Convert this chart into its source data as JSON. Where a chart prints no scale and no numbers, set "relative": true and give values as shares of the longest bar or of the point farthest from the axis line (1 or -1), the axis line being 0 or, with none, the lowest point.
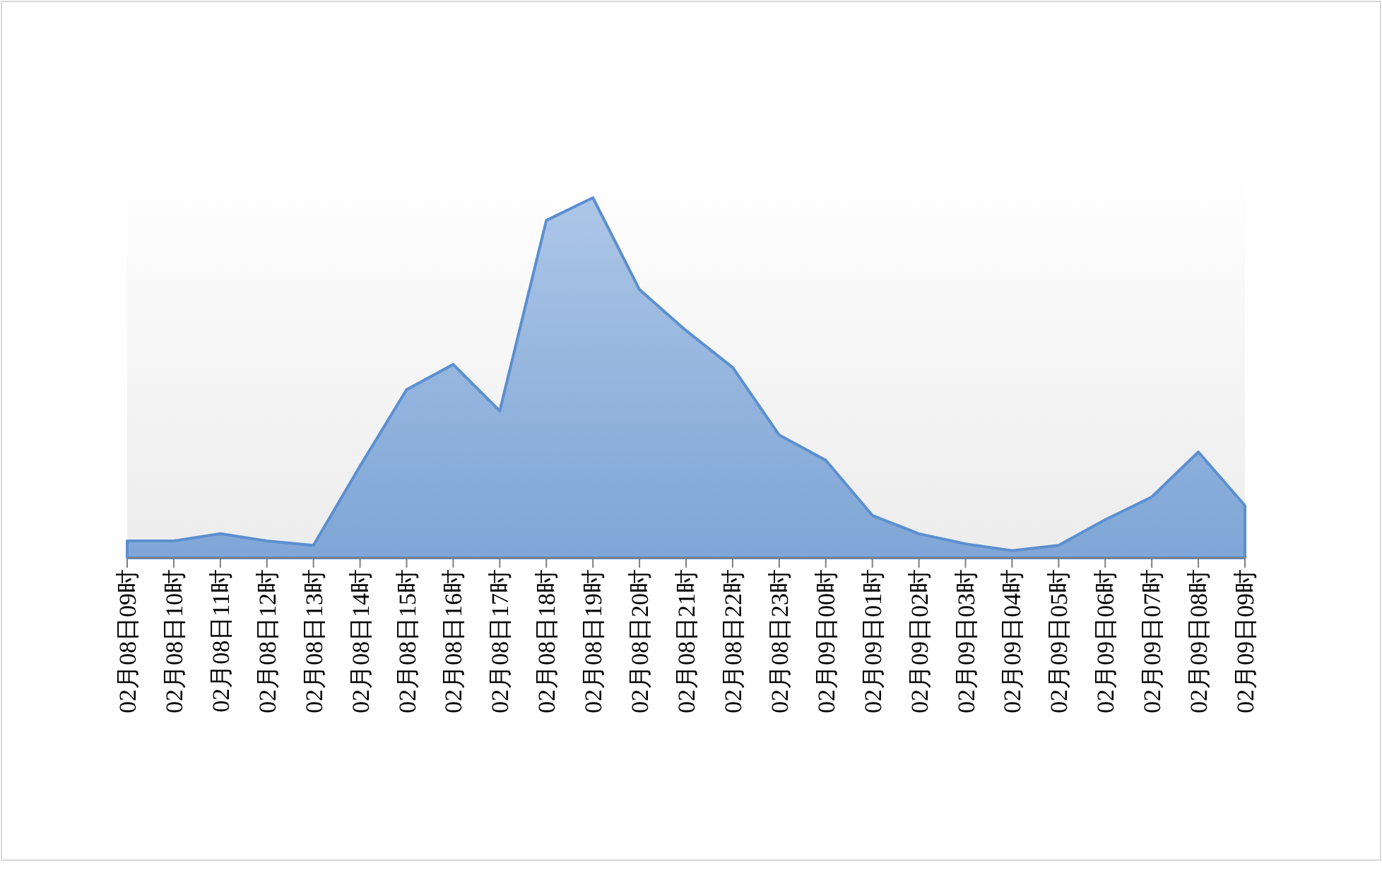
{
  "chart_data": {
    "type": "area",
    "relative": true,
    "categories": [
      "02月08日09时",
      "02月08日10时",
      "02月08日11时",
      "02月08日12时",
      "02月08日13时",
      "02月08日14时",
      "02月08日15时",
      "02月08日16时",
      "02月08日17时",
      "02月08日18时",
      "02月08日19时",
      "02月08日20时",
      "02月08日21时",
      "02月08日22时",
      "02月08日23时",
      "02月09日00时",
      "02月09日01时",
      "02月09日02时",
      "02月09日03时",
      "02月09日04时",
      "02月09日05时",
      "02月09日06时",
      "02月09日07时",
      "02月09日08时",
      "02月09日09时"
    ],
    "series": [
      {
        "color": "#5b8fd0",
        "values": [
          0.047,
          0.047,
          0.067,
          0.047,
          0.035,
          0.255,
          0.467,
          0.537,
          0.408,
          0.937,
          1,
          0.745,
          0.631,
          0.529,
          0.341,
          0.271,
          0.118,
          0.067,
          0.039,
          0.02,
          0.035,
          0.106,
          0.169,
          0.294,
          0.145
        ]
      }
    ]
  }
}
